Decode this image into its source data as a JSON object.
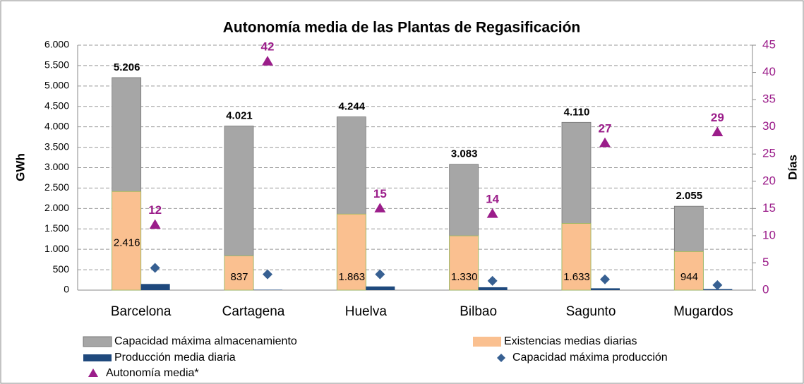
{
  "chart_data": {
    "type": "combo",
    "title": "Autonomía media de las Plantas de Regasificación",
    "y_label": "GWh",
    "y2_label": "Días",
    "categories": [
      "Barcelona",
      "Cartagena",
      "Huelva",
      "Bilbao",
      "Sagunto",
      "Mugardos"
    ],
    "ylim": [
      0,
      6000
    ],
    "yticks": [
      0,
      500,
      {
        "value": 1000,
        "label": "1.000"
      },
      {
        "value": 1500,
        "label": "1.500"
      },
      {
        "value": 2000,
        "label": "2.000"
      },
      {
        "value": 2500,
        "label": "2.500"
      },
      {
        "value": 3000,
        "label": "3.000"
      },
      {
        "value": 3500,
        "label": "3.500"
      },
      {
        "value": 4000,
        "label": "4.000"
      },
      {
        "value": 4500,
        "label": "4.500"
      },
      {
        "value": 5000,
        "label": "5.000"
      },
      {
        "value": 5500,
        "label": "5.500"
      },
      {
        "value": 6000,
        "label": "6.000"
      }
    ],
    "y2lim": [
      0,
      45
    ],
    "y2ticks": [
      0,
      5,
      10,
      15,
      20,
      25,
      30,
      35,
      40,
      45
    ],
    "grid": true,
    "series": [
      {
        "name": "Capacidad máxima almacenamiento",
        "kind": "bar_back",
        "color": "#a6a6a6",
        "values": [
          5206,
          4021,
          4244,
          3083,
          4110,
          2055
        ],
        "value_labels": [
          "5.206",
          "4.021",
          "4.244",
          "3.083",
          "4.110",
          "2.055"
        ]
      },
      {
        "name": "Existencias medias diarias",
        "kind": "bar_front",
        "color": "#fac090",
        "values": [
          2416,
          837,
          1863,
          1330,
          1633,
          944
        ],
        "value_labels": [
          "2.416",
          "837",
          "1.863",
          "1.330",
          "1.633",
          "944"
        ]
      },
      {
        "name": "Producción media diaria",
        "kind": "bar_side",
        "color": "#1f497d",
        "values": [
          150,
          10,
          90,
          70,
          45,
          25
        ]
      },
      {
        "name": "Capacidad máxima producción",
        "kind": "diamond",
        "color": "#376092",
        "values": [
          544,
          386,
          386,
          228,
          263,
          123
        ]
      },
      {
        "name": "Autonomía media*",
        "kind": "triangle",
        "axis": "y2",
        "color": "#9b1d8a",
        "values": [
          12,
          42,
          15,
          14,
          27,
          29
        ]
      }
    ]
  }
}
